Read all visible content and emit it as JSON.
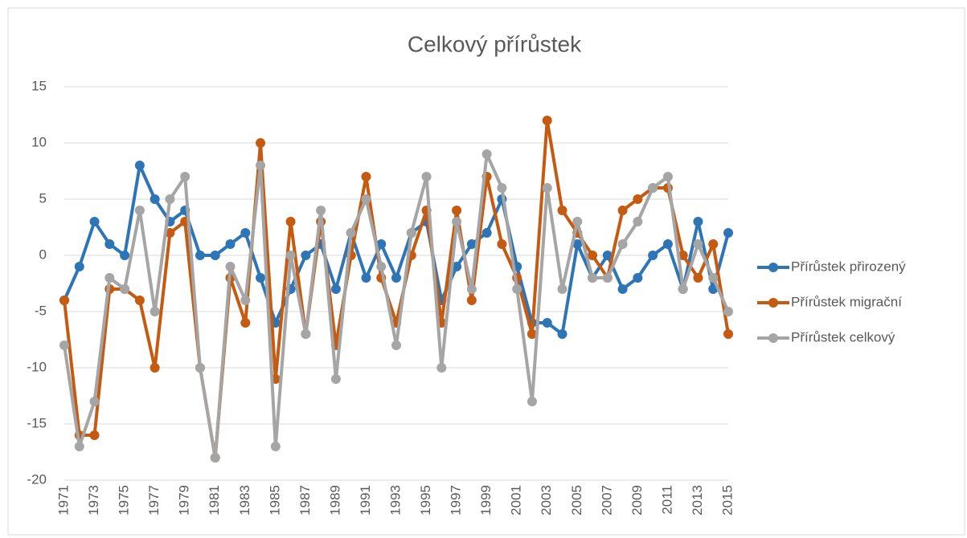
{
  "chart_data": {
    "type": "line",
    "title": "Celkový přírůstek",
    "categories": [
      "1971",
      null,
      "1973",
      null,
      "1975",
      null,
      "1977",
      null,
      "1979",
      null,
      "1981",
      null,
      "1983",
      null,
      "1985",
      null,
      "1987",
      null,
      "1989",
      null,
      "1991",
      null,
      "1993",
      null,
      "1995",
      null,
      "1997",
      null,
      "1999",
      null,
      "2001",
      null,
      "2003",
      null,
      "2005",
      null,
      "2007",
      null,
      "2009",
      null,
      "2011",
      null,
      "2013",
      null,
      "2015"
    ],
    "series": [
      {
        "name": "Přírůstek přirozený",
        "color": "#2e75b6",
        "values": [
          -4,
          -1,
          3,
          1,
          0,
          8,
          5,
          3,
          4,
          0,
          0,
          1,
          2,
          -2,
          -6,
          -3,
          0,
          1,
          -3,
          2,
          -2,
          1,
          -2,
          2,
          3,
          -4,
          -1,
          1,
          2,
          5,
          -1,
          -6,
          -6,
          -7,
          1,
          -2,
          0,
          -3,
          -2,
          0,
          1,
          -3,
          3,
          -3,
          2
        ]
      },
      {
        "name": "Přírůstek migrační",
        "color": "#c55a11",
        "values": [
          -4,
          -16,
          -16,
          -3,
          -3,
          -4,
          -10,
          2,
          3,
          -10,
          -18,
          -2,
          -6,
          10,
          -11,
          3,
          -7,
          3,
          -8,
          0,
          7,
          -2,
          -6,
          0,
          4,
          -6,
          4,
          -4,
          7,
          1,
          -2,
          -7,
          12,
          4,
          2,
          0,
          -2,
          4,
          5,
          6,
          6,
          0,
          -2,
          1,
          -7
        ]
      },
      {
        "name": "Přírůstek celkový",
        "color": "#a5a5a5",
        "values": [
          -8,
          -17,
          -13,
          -2,
          -3,
          4,
          -5,
          5,
          7,
          -10,
          -18,
          -1,
          -4,
          8,
          -17,
          0,
          -7,
          4,
          -11,
          2,
          5,
          -1,
          -8,
          2,
          7,
          -10,
          3,
          -3,
          9,
          6,
          -3,
          -13,
          6,
          -3,
          3,
          -2,
          -2,
          1,
          3,
          6,
          7,
          -3,
          1,
          -2,
          -5
        ]
      }
    ],
    "ylim": [
      -20,
      15
    ],
    "yticks": [
      -20,
      -15,
      -10,
      -5,
      0,
      5,
      10,
      15
    ],
    "grid": true,
    "legend": "right"
  }
}
